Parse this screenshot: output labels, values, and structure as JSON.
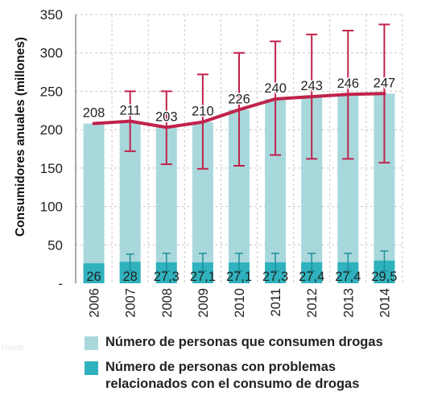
{
  "chart_data": {
    "type": "bar",
    "ylabel": "Consumidores anuales (millones)",
    "ylim": [
      0,
      350
    ],
    "yticks": [
      {
        "value": 0,
        "label": "-"
      },
      {
        "value": 50,
        "label": "50"
      },
      {
        "value": 100,
        "label": "100"
      },
      {
        "value": 150,
        "label": "150"
      },
      {
        "value": 200,
        "label": "200"
      },
      {
        "value": 250,
        "label": "250"
      },
      {
        "value": 300,
        "label": "300"
      },
      {
        "value": 350,
        "label": "350"
      }
    ],
    "categories": [
      "2006",
      "2007",
      "2008",
      "2009",
      "2010",
      "2011",
      "2012",
      "2013",
      "2014"
    ],
    "grid": true,
    "series": [
      {
        "name": "Número de personas que consumen drogas",
        "type": "bar",
        "color": "#a8d8dc",
        "values": [
          208,
          211,
          203,
          210,
          226,
          240,
          243,
          246,
          247
        ],
        "value_labels": [
          "208",
          "211",
          "203",
          "210",
          "226",
          "240",
          "243",
          "246",
          "247"
        ],
        "line_color": "#c0234b",
        "error_low": [
          null,
          172,
          155,
          149,
          153,
          167,
          162,
          162,
          157
        ],
        "error_high": [
          null,
          250,
          250,
          272,
          300,
          315,
          324,
          329,
          337
        ]
      },
      {
        "name": "Número de personas con problemas relacionados con el consumo de drogas",
        "type": "bar",
        "color": "#2fb2bd",
        "values": [
          26,
          28,
          27.3,
          27.1,
          27.1,
          27.3,
          27.4,
          27.4,
          29.5
        ],
        "value_labels": [
          "26",
          "28",
          "27,3",
          "27,1",
          "27,1",
          "27,3",
          "27,4",
          "27,4",
          "29,5"
        ],
        "error_low": [
          null,
          16,
          16,
          16,
          16,
          16,
          16,
          16,
          16
        ],
        "error_high": [
          null,
          38,
          39,
          39,
          39,
          39,
          39,
          39,
          42
        ]
      }
    ]
  },
  "legend": {
    "items": [
      {
        "label": "Número de personas que consumen drogas",
        "color": "#a8d8dc"
      },
      {
        "label": "Número de personas con problemas relacionados con el consumo de drogas",
        "color": "#2fb2bd"
      }
    ]
  },
  "colors": {
    "error_bar": "#c0234b",
    "gridline": "#c8c8c8",
    "axis": "#555555",
    "text": "#222222"
  },
  "watermark": "Unodc"
}
